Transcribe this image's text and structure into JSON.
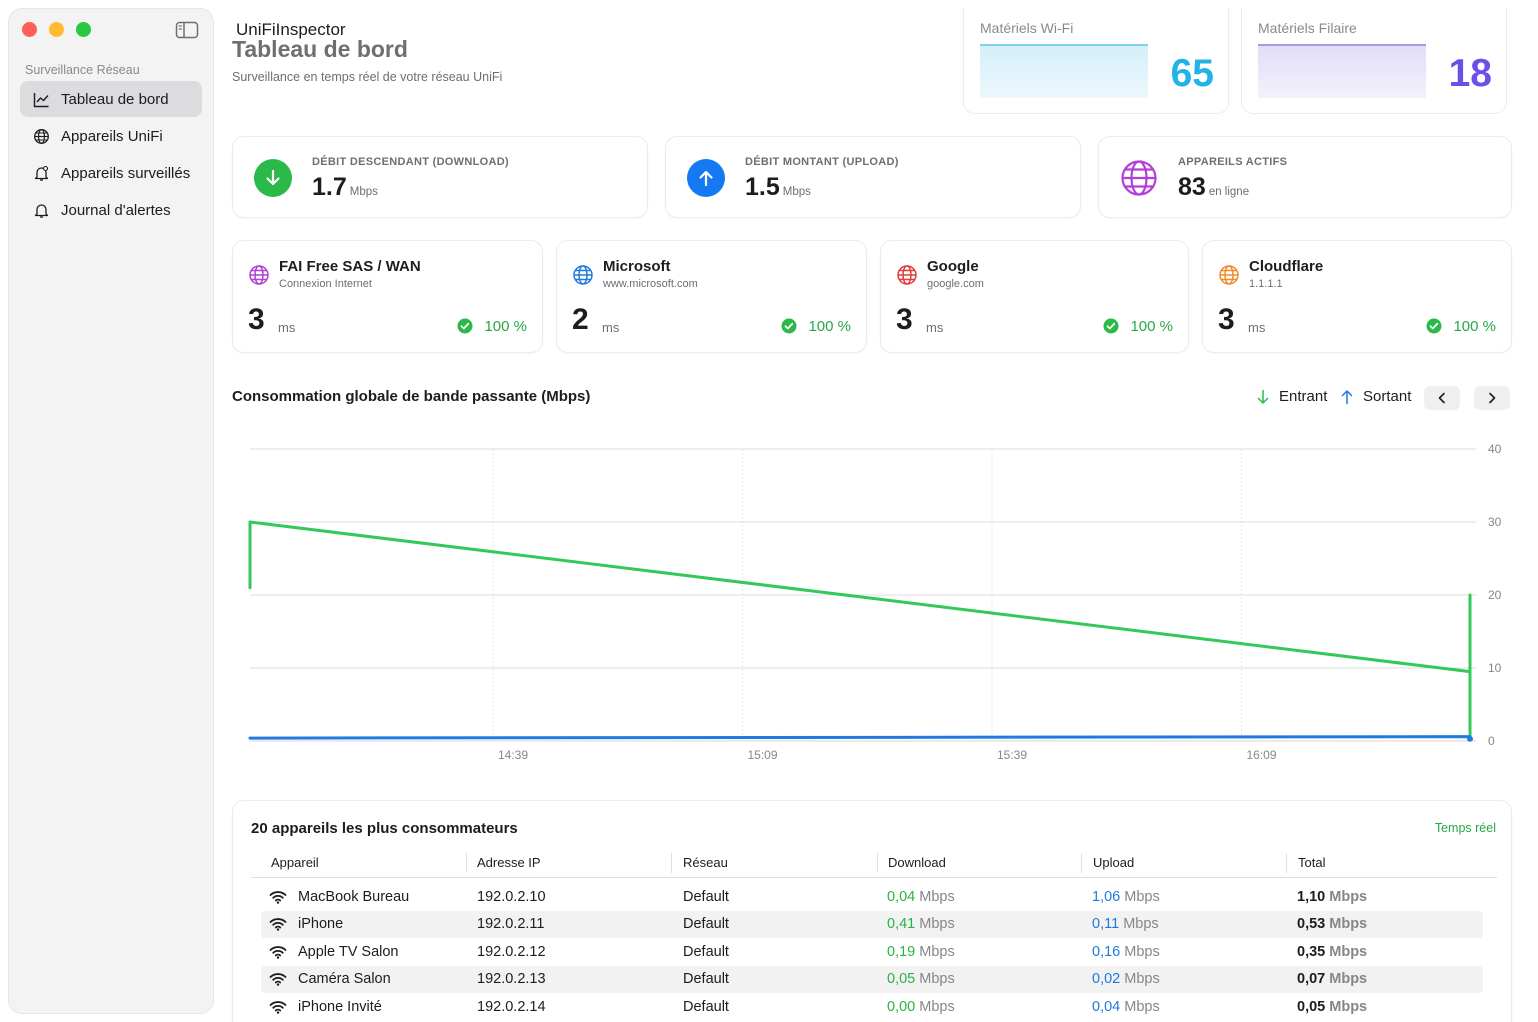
{
  "sidebar": {
    "section": "Surveillance Réseau",
    "items": [
      {
        "label": "Tableau de bord",
        "icon": "chart-icon",
        "active": true
      },
      {
        "label": "Appareils UniFi",
        "icon": "globe-icon",
        "active": false
      },
      {
        "label": "Appareils surveillés",
        "icon": "bell-badge-icon",
        "active": false
      },
      {
        "label": "Journal d'alertes",
        "icon": "bell-icon",
        "active": false
      }
    ]
  },
  "header": {
    "app_name": "UniFiInspector",
    "title": "Tableau de bord",
    "subtitle": "Surveillance en temps réel de votre réseau UniFi"
  },
  "counters": {
    "wifi": {
      "label": "Matériels Wi-Fi",
      "value": "65",
      "color": "#1fb3e6"
    },
    "wired": {
      "label": "Matériels Filaire",
      "value": "18",
      "color": "#6b4fe8"
    }
  },
  "stats": {
    "download": {
      "label": "DÉBIT DESCENDANT (DOWNLOAD)",
      "value": "1.7",
      "unit": "Mbps",
      "color": "#2bb94a"
    },
    "upload": {
      "label": "DÉBIT MONTANT (UPLOAD)",
      "value": "1.5",
      "unit": "Mbps",
      "color": "#1579f4"
    },
    "active": {
      "label": "APPAREILS ACTIFS",
      "value": "83",
      "unit": "en ligne",
      "color": "#b23fd8"
    }
  },
  "pings": [
    {
      "name": "FAI Free SAS / WAN",
      "sub": "Connexion Internet",
      "ms": "3",
      "ms_unit": "ms",
      "pct": "100 %",
      "color": "#b23fd8"
    },
    {
      "name": "Microsoft",
      "sub": "www.microsoft.com",
      "ms": "2",
      "ms_unit": "ms",
      "pct": "100 %",
      "color": "#1f7ae0"
    },
    {
      "name": "Google",
      "sub": "google.com",
      "ms": "3",
      "ms_unit": "ms",
      "pct": "100 %",
      "color": "#e23b3b"
    },
    {
      "name": "Cloudflare",
      "sub": "1.1.1.1",
      "ms": "3",
      "ms_unit": "ms",
      "pct": "100 %",
      "color": "#f08a28"
    }
  ],
  "chart_section": {
    "title": "Consommation globale de bande passante (Mbps)",
    "legend_in": "Entrant",
    "legend_out": "Sortant"
  },
  "chart_data": {
    "type": "line",
    "ylim": [
      0,
      40
    ],
    "yticks": [
      "0",
      "10",
      "20",
      "30",
      "40"
    ],
    "xticks": [
      "14:39",
      "15:09",
      "15:39",
      "16:09"
    ],
    "grid": true,
    "series": [
      {
        "name": "Entrant",
        "color": "#34c759",
        "points": [
          [
            0,
            21
          ],
          [
            0,
            30
          ],
          [
            1,
            9.5
          ],
          [
            1,
            20
          ],
          [
            1,
            4
          ],
          [
            1,
            0.3
          ]
        ]
      },
      {
        "name": "Sortant",
        "color": "#1f7ae0",
        "points": [
          [
            0,
            0.4
          ],
          [
            1,
            0.6
          ],
          [
            1,
            0.3
          ]
        ]
      }
    ]
  },
  "table": {
    "title": "20 appareils les plus consommateurs",
    "realtime": "Temps réel",
    "columns": [
      "Appareil",
      "Adresse IP",
      "Réseau",
      "Download",
      "Upload",
      "Total"
    ],
    "unit": "Mbps",
    "rows": [
      {
        "name": "MacBook Bureau",
        "ip": "192.0.2.10",
        "net": "Default",
        "dl": "0,04",
        "ul": "1,06",
        "total": "1,10"
      },
      {
        "name": "iPhone",
        "ip": "192.0.2.11",
        "net": "Default",
        "dl": "0,41",
        "ul": "0,11",
        "total": "0,53"
      },
      {
        "name": "Apple TV Salon",
        "ip": "192.0.2.12",
        "net": "Default",
        "dl": "0,19",
        "ul": "0,16",
        "total": "0,35"
      },
      {
        "name": "Caméra Salon",
        "ip": "192.0.2.13",
        "net": "Default",
        "dl": "0,05",
        "ul": "0,02",
        "total": "0,07"
      },
      {
        "name": "iPhone Invité",
        "ip": "192.0.2.14",
        "net": "Default",
        "dl": "0,00",
        "ul": "0,04",
        "total": "0,05"
      }
    ]
  }
}
